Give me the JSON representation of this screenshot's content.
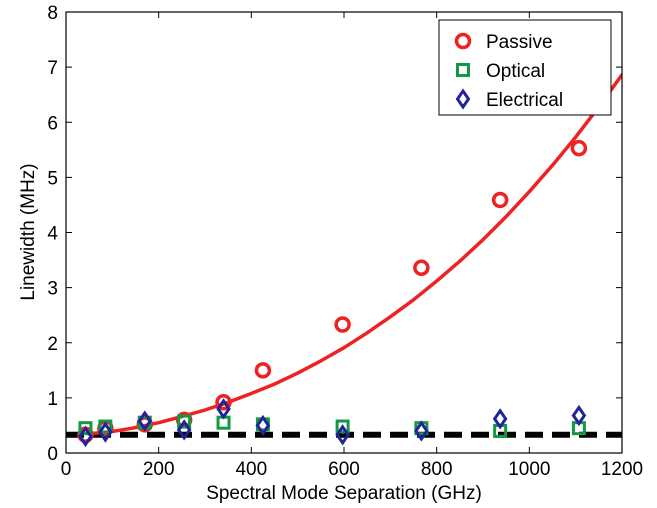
{
  "chart_data": {
    "type": "scatter",
    "title": "",
    "xlabel": "Spectral Mode Separation (GHz)",
    "ylabel": "Linewidth (MHz)",
    "xlim": [
      0,
      1200
    ],
    "ylim": [
      0,
      8
    ],
    "xticks": [
      0,
      200,
      400,
      600,
      800,
      1000,
      1200
    ],
    "yticks": [
      0,
      1,
      2,
      3,
      4,
      5,
      6,
      7,
      8
    ],
    "grid": false,
    "legend_position": "top-right",
    "series": [
      {
        "name": "Passive",
        "marker": "circle",
        "color": "#ee2222",
        "x": [
          42,
          85,
          170,
          255,
          340,
          425,
          597,
          767,
          937,
          1107
        ],
        "y": [
          0.33,
          0.45,
          0.52,
          0.6,
          0.92,
          1.5,
          2.33,
          3.36,
          4.59,
          5.53
        ]
      },
      {
        "name": "Optical",
        "marker": "square",
        "color": "#119944",
        "x": [
          42,
          85,
          170,
          255,
          340,
          425,
          597,
          767,
          937,
          1107
        ],
        "y": [
          0.45,
          0.48,
          0.55,
          0.57,
          0.55,
          0.52,
          0.48,
          0.45,
          0.4,
          0.45
        ]
      },
      {
        "name": "Electrical",
        "marker": "diamond",
        "color": "#222299",
        "x": [
          42,
          85,
          170,
          255,
          340,
          425,
          597,
          767,
          937,
          1107
        ],
        "y": [
          0.3,
          0.38,
          0.58,
          0.42,
          0.8,
          0.5,
          0.33,
          0.4,
          0.62,
          0.68
        ]
      }
    ],
    "fit_curve": {
      "color": "#ee2222",
      "x": [
        50,
        100,
        150,
        200,
        250,
        300,
        350,
        400,
        450,
        500,
        550,
        600,
        650,
        700,
        750,
        800,
        850,
        900,
        950,
        1000,
        1050,
        1100,
        1150,
        1200
      ],
      "y": [
        0.35,
        0.39,
        0.46,
        0.55,
        0.66,
        0.78,
        0.92,
        1.08,
        1.25,
        1.45,
        1.67,
        1.91,
        2.18,
        2.47,
        2.78,
        3.12,
        3.48,
        3.87,
        4.29,
        4.74,
        5.22,
        5.73,
        6.28,
        6.86
      ]
    },
    "reference_line": {
      "color": "#000000",
      "style": "dashed",
      "y": 0.33
    }
  }
}
